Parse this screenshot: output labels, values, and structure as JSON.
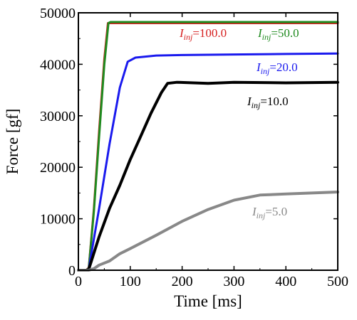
{
  "chart_data": {
    "type": "line",
    "xlabel": "Time [ms]",
    "ylabel": "Force [gf]",
    "xlim": [
      0,
      500
    ],
    "ylim": [
      0,
      50000
    ],
    "xticks": [
      "0",
      "100",
      "200",
      "300",
      "400",
      "500"
    ],
    "yticks": [
      "0",
      "10000",
      "20000",
      "30000",
      "40000",
      "50000"
    ],
    "grid": false,
    "series": [
      {
        "name": "I_inj=100.0",
        "label_prefix": "I",
        "label_sub": "inj",
        "label_value": "=100.0",
        "color": "#d62020",
        "x": [
          0,
          15,
          20,
          30,
          40,
          50,
          57,
          60,
          80,
          100,
          200,
          300,
          400,
          500
        ],
        "y": [
          0,
          0,
          500,
          12000,
          27000,
          41000,
          48000,
          48000,
          48000,
          48000,
          48000,
          48000,
          48000,
          48000
        ]
      },
      {
        "name": "I_inj=50.0",
        "label_prefix": "I",
        "label_sub": "inj",
        "label_value": "=50.0",
        "color": "#1f8a1f",
        "x": [
          0,
          15,
          20,
          30,
          40,
          50,
          58,
          62,
          80,
          100,
          200,
          300,
          400,
          500
        ],
        "y": [
          0,
          0,
          400,
          11500,
          26000,
          40000,
          48000,
          48200,
          48200,
          48200,
          48200,
          48200,
          48200,
          48200
        ]
      },
      {
        "name": "I_inj=20.0",
        "label_prefix": "I",
        "label_sub": "inj",
        "label_value": "=20.0",
        "color": "#1a1aee",
        "x": [
          0,
          15,
          20,
          40,
          60,
          80,
          95,
          110,
          150,
          200,
          300,
          400,
          500
        ],
        "y": [
          0,
          0,
          300,
          12000,
          24500,
          35500,
          40500,
          41300,
          41700,
          41800,
          41900,
          42000,
          42100
        ]
      },
      {
        "name": "I_inj=10.0",
        "label_prefix": "I",
        "label_sub": "inj",
        "label_value": "=10.0",
        "color": "#000000",
        "x": [
          0,
          15,
          20,
          40,
          60,
          80,
          100,
          120,
          140,
          160,
          172,
          190,
          250,
          300,
          400,
          500
        ],
        "y": [
          0,
          0,
          200,
          6500,
          12000,
          16500,
          21500,
          26000,
          30500,
          34500,
          36300,
          36500,
          36300,
          36500,
          36400,
          36500
        ],
        "bold": true
      },
      {
        "name": "I_inj=5.0",
        "label_prefix": "I",
        "label_sub": "inj",
        "label_value": "=5.0",
        "color": "#888888",
        "x": [
          0,
          20,
          30,
          40,
          60,
          80,
          100,
          150,
          200,
          250,
          300,
          350,
          400,
          450,
          500
        ],
        "y": [
          0,
          0,
          300,
          1000,
          1800,
          3200,
          4200,
          6800,
          9500,
          11800,
          13600,
          14600,
          14800,
          15000,
          15200
        ],
        "bold": true
      }
    ]
  }
}
